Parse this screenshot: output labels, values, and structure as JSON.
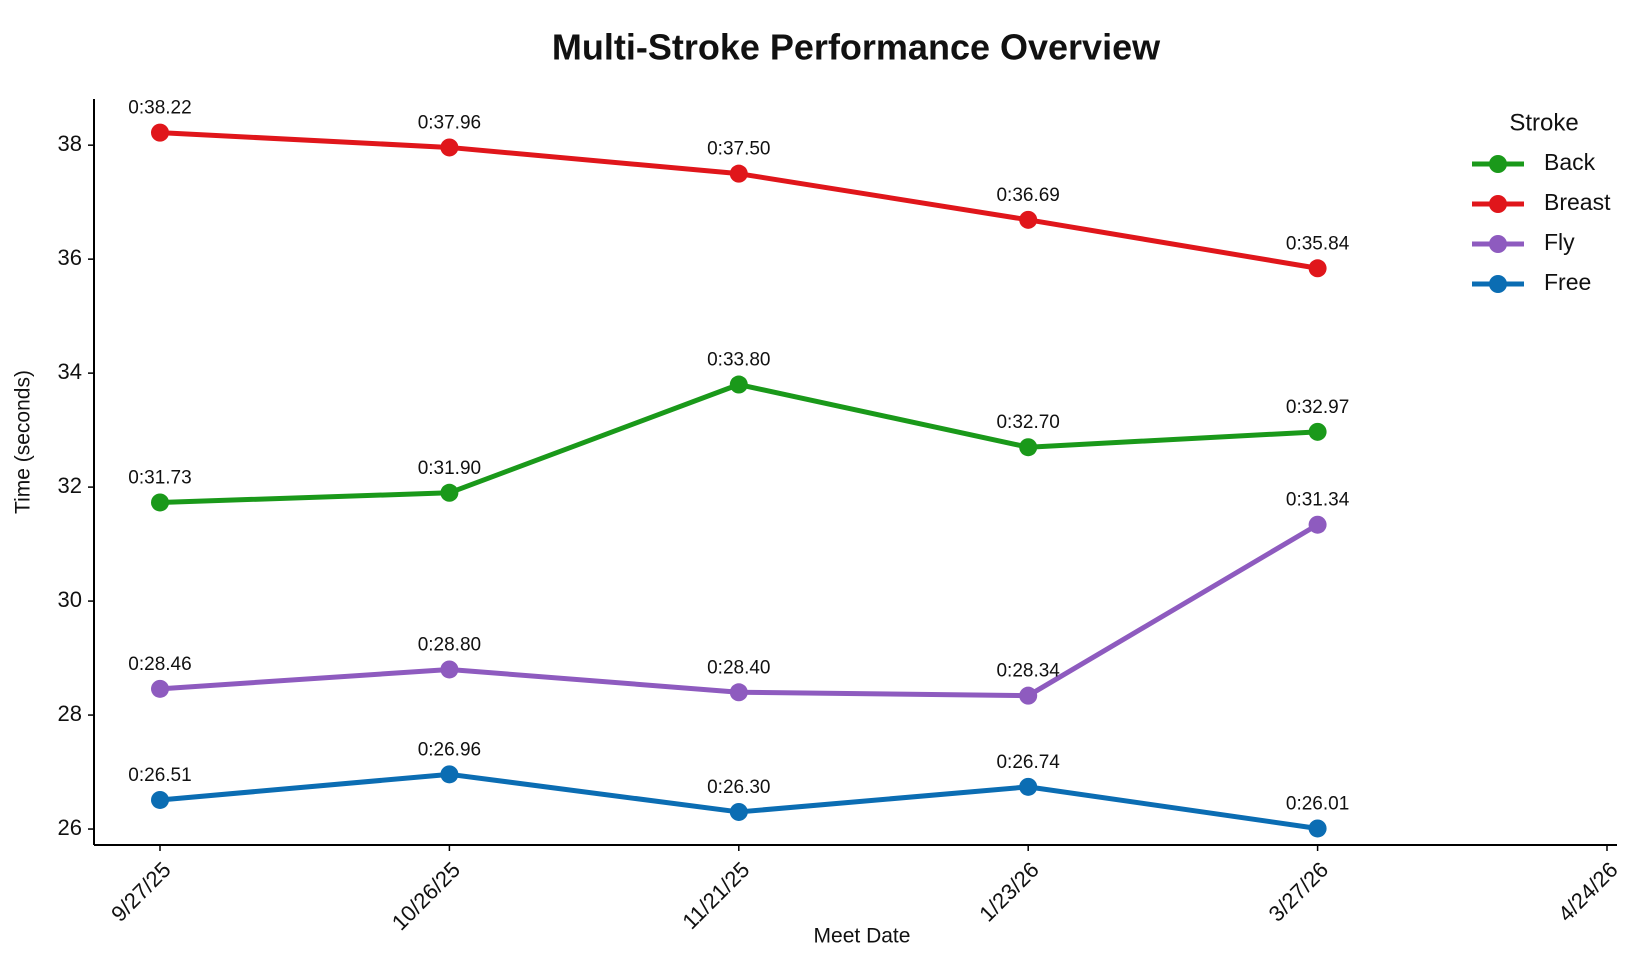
{
  "chart_data": {
    "type": "line",
    "title": "Multi-Stroke Performance Overview",
    "x_label": "Meet Date",
    "y_label": "Time (seconds)",
    "categories": [
      "9/27/25",
      "10/26/25",
      "11/21/25",
      "1/23/26",
      "3/27/26",
      "4/24/26"
    ],
    "series": [
      {
        "name": "Back",
        "color": "#1a991a",
        "values": [
          31.73,
          31.9,
          33.8,
          32.7,
          32.97,
          null
        ],
        "value_labels": [
          "0:31.73",
          "0:31.90",
          "0:33.80",
          "0:32.70",
          "0:32.97",
          null
        ]
      },
      {
        "name": "Breast",
        "color": "#e0161b",
        "values": [
          38.22,
          37.96,
          37.5,
          36.69,
          35.84,
          null
        ],
        "value_labels": [
          "0:38.22",
          "0:37.96",
          "0:37.50",
          "0:36.69",
          "0:35.84",
          null
        ]
      },
      {
        "name": "Fly",
        "color": "#8e5bbf",
        "values": [
          28.46,
          28.8,
          28.4,
          28.34,
          31.34,
          null
        ],
        "value_labels": [
          "0:28.46",
          "0:28.80",
          "0:28.40",
          "0:28.34",
          "0:31.34",
          null
        ]
      },
      {
        "name": "Free",
        "color": "#0b6db3",
        "values": [
          26.51,
          26.96,
          26.3,
          26.74,
          26.01,
          null
        ],
        "value_labels": [
          "0:26.51",
          "0:26.96",
          "0:26.30",
          "0:26.74",
          "0:26.01",
          null
        ]
      }
    ],
    "ylim": [
      25.72,
      38.81
    ],
    "yticks": [
      26,
      28,
      30,
      32,
      34,
      36,
      38
    ],
    "grid": false,
    "legend_title": "Stroke",
    "legend_position": "top-right"
  }
}
